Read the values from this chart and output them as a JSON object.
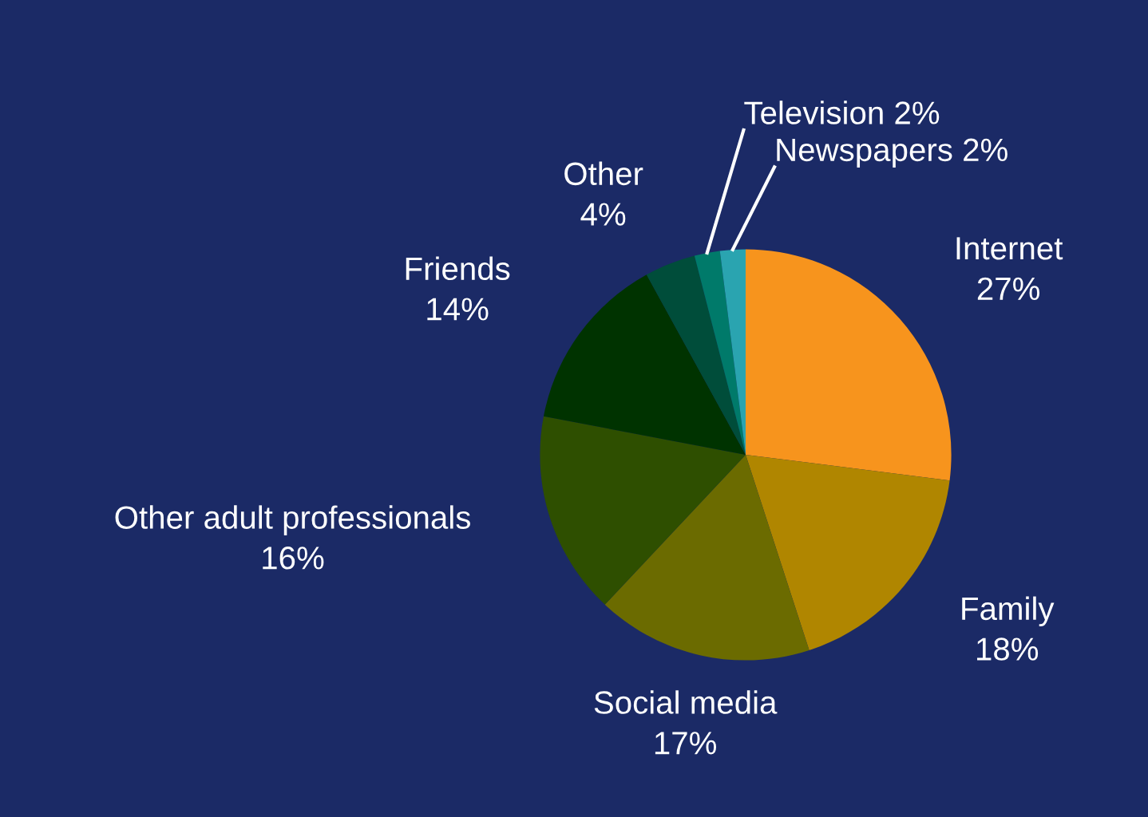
{
  "chart_data": {
    "type": "pie",
    "categories": [
      "Internet",
      "Family",
      "Social media",
      "Other adult professionals",
      "Friends",
      "Other",
      "Television",
      "Newspapers"
    ],
    "values": [
      27,
      18,
      17,
      16,
      14,
      4,
      2,
      2
    ],
    "value_labels": [
      "27%",
      "18%",
      "17%",
      "16%",
      "14%",
      "4%",
      "2%",
      "2%"
    ],
    "colors": [
      "#f7941d",
      "#b08600",
      "#6b6b00",
      "#2e4f00",
      "#003300",
      "#004d3a",
      "#007a6a",
      "#2aa4b0"
    ],
    "legend": false
  }
}
